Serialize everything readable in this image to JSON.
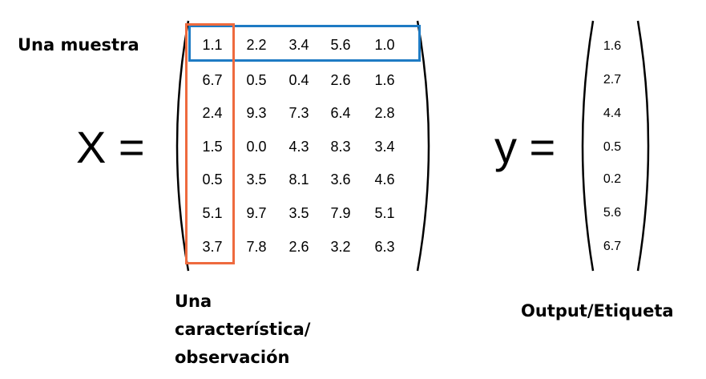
{
  "labels": {
    "sample": "Una muestra",
    "feature_line1": "Una",
    "feature_line2": "característica/",
    "feature_line3": "observación",
    "output": "Output/Etiqueta"
  },
  "equation": {
    "x_symbol": "X =",
    "y_symbol": "y ="
  },
  "matrix_x": [
    [
      "1.1",
      "2.2",
      "3.4",
      "5.6",
      "1.0"
    ],
    [
      "6.7",
      "0.5",
      "0.4",
      "2.6",
      "1.6"
    ],
    [
      "2.4",
      "9.3",
      "7.3",
      "6.4",
      "2.8"
    ],
    [
      "1.5",
      "0.0",
      "4.3",
      "8.3",
      "3.4"
    ],
    [
      "0.5",
      "3.5",
      "8.1",
      "3.6",
      "4.6"
    ],
    [
      "5.1",
      "9.7",
      "3.5",
      "7.9",
      "5.1"
    ],
    [
      "3.7",
      "7.8",
      "2.6",
      "3.2",
      "6.3"
    ]
  ],
  "vector_y": [
    "1.6",
    "2.7",
    "4.4",
    "0.5",
    "0.2",
    "5.6",
    "6.7"
  ],
  "colors": {
    "row_highlight": "#1e7bc4",
    "column_highlight": "#ee6a3e"
  }
}
